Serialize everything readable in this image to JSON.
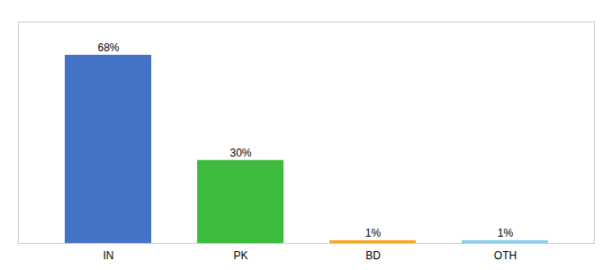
{
  "chart_data": {
    "type": "bar",
    "categories": [
      "IN",
      "PK",
      "BD",
      "OTH"
    ],
    "values": [
      68,
      30,
      1,
      1
    ],
    "value_labels": [
      "68%",
      "30%",
      "1%",
      "1%"
    ],
    "colors": [
      "#4472c4",
      "#3dbb3d",
      "#f5a623",
      "#87ceeb"
    ],
    "ylim": [
      0,
      80
    ],
    "data_labels": true,
    "tick_labels": "x",
    "grid": false
  }
}
